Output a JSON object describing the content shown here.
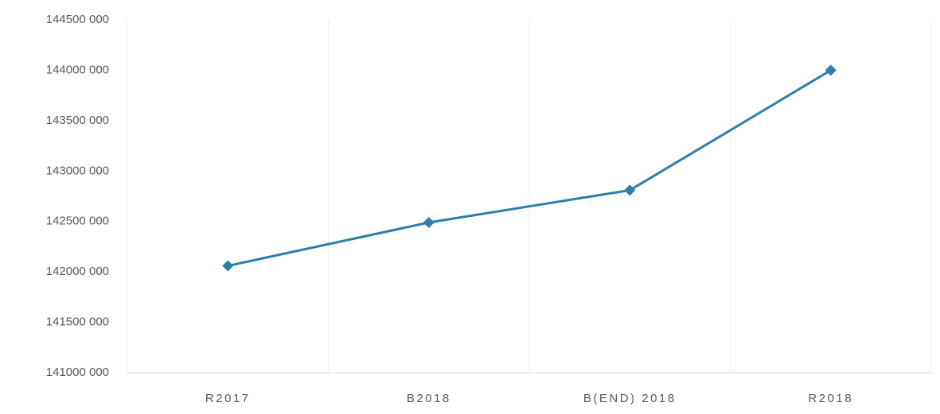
{
  "chart_data": {
    "type": "line",
    "categories": [
      "R2017",
      "B2018",
      "B(END) 2018",
      "R2018"
    ],
    "series": [
      {
        "name": null,
        "color": "#2a7fab",
        "values": [
          142060000,
          142490000,
          142810000,
          144000000
        ]
      }
    ],
    "ylim": [
      141000000,
      144500000
    ],
    "yticks": [
      {
        "value": 141000000,
        "label": "141000 000"
      },
      {
        "value": 141500000,
        "label": "141500 000"
      },
      {
        "value": 142000000,
        "label": "142000 000"
      },
      {
        "value": 142500000,
        "label": "142500 000"
      },
      {
        "value": 143000000,
        "label": "143000 000"
      },
      {
        "value": 143500000,
        "label": "143500 000"
      },
      {
        "value": 144000000,
        "label": "144000 000"
      },
      {
        "value": 144500000,
        "label": "144500 000"
      }
    ],
    "grid": true
  }
}
